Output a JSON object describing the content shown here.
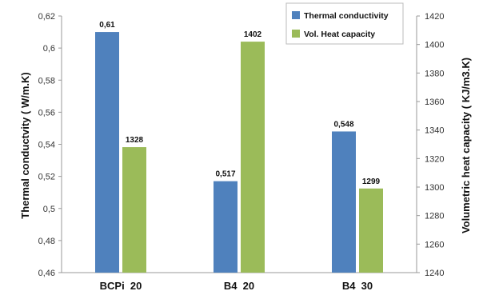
{
  "chart_data": {
    "type": "bar",
    "categories": [
      "BCPi  20",
      "B4  20",
      "B4  30"
    ],
    "series": [
      {
        "name": "Thermal conductivity",
        "axis": "left",
        "color": "#4F81BD",
        "values": [
          0.61,
          0.517,
          0.548
        ],
        "value_labels": [
          "0,61",
          "0,517",
          "0,548"
        ]
      },
      {
        "name": "Vol. Heat capacity",
        "axis": "right",
        "color": "#9BBB59",
        "values": [
          1328,
          1402,
          1299
        ],
        "value_labels": [
          "1328",
          "1402",
          "1299"
        ]
      }
    ],
    "ylabel_left": "Thermal conductvity  ( W/m.K)",
    "ylabel_right": "Volumetric  heat  capacity  ( KJ/m3.K)",
    "ylim_left": [
      0.46,
      0.62
    ],
    "ylim_right": [
      1240,
      1420
    ],
    "yticks_left": [
      "0,46",
      "0,48",
      "0,5",
      "0,52",
      "0,54",
      "0,56",
      "0,58",
      "0,6",
      "0,62"
    ],
    "yticks_right": [
      "1240",
      "1260",
      "1280",
      "1300",
      "1320",
      "1340",
      "1360",
      "1380",
      "1400",
      "1420"
    ],
    "legend_position": "top-right",
    "grid": false
  }
}
